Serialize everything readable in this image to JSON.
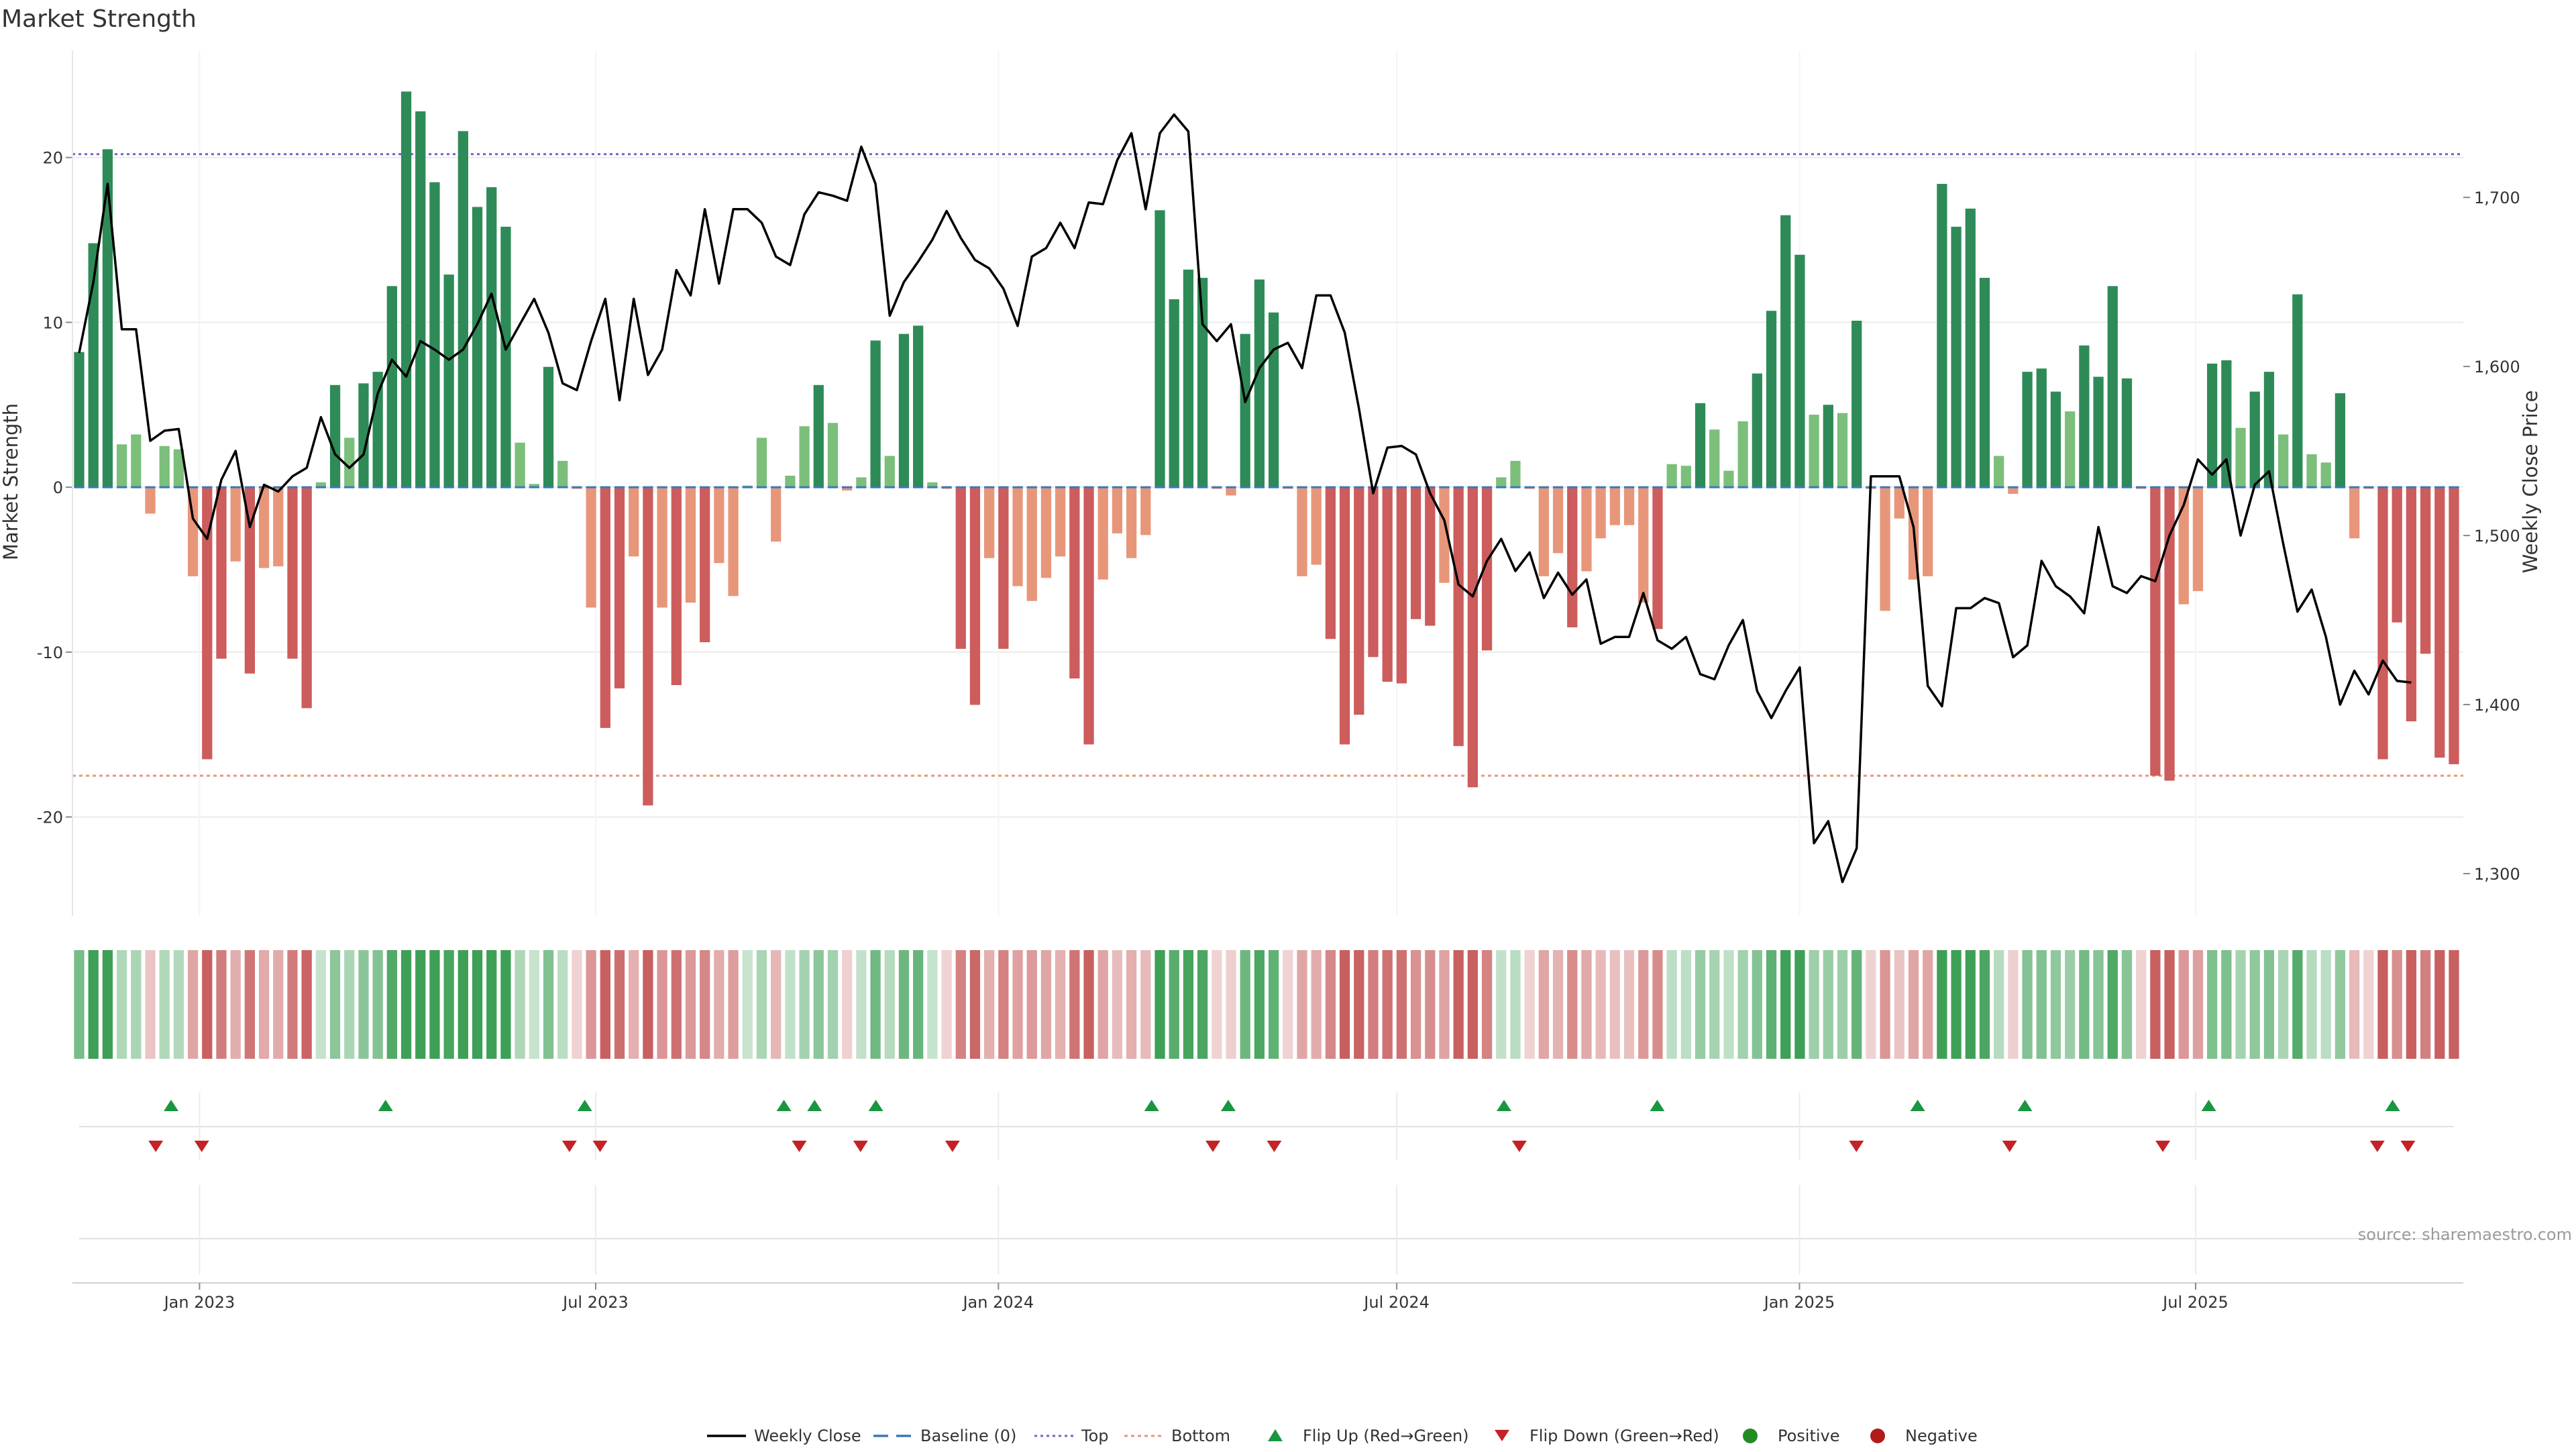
{
  "chart_data": {
    "type": "bar+line",
    "title": "Market Strength",
    "ylabel_left": "Market Strength",
    "ylabel_right": "Weekly Close Price",
    "ylim_left": [
      -26.0,
      26.5
    ],
    "ylim_right": [
      1275,
      1787
    ],
    "yticks_left": [
      20,
      10,
      0,
      -10,
      -20
    ],
    "yticks_right": [
      1700,
      1600,
      1500,
      1400,
      1300
    ],
    "yticks_right_labels": [
      "1,700",
      "1,600",
      "1,500",
      "1,400",
      "1,300"
    ],
    "top_line": 20.2,
    "bottom_line": -17.5,
    "baseline": 0,
    "x_start": "2022-11-07",
    "x_end": "2025-10-27",
    "xticks": [
      {
        "date": "2023-01-01",
        "label": "Jan 2023"
      },
      {
        "date": "2023-07-01",
        "label": "Jul 2023"
      },
      {
        "date": "2024-01-01",
        "label": "Jan 2024"
      },
      {
        "date": "2024-07-01",
        "label": "Jul 2024"
      },
      {
        "date": "2025-01-01",
        "label": "Jan 2025"
      },
      {
        "date": "2025-07-01",
        "label": "Jul 2025"
      }
    ],
    "strength_values": [
      8.2,
      14.8,
      20.5,
      2.6,
      3.2,
      -1.6,
      2.5,
      2.3,
      -5.4,
      -16.5,
      -10.4,
      -4.5,
      -11.3,
      -4.9,
      -4.8,
      -10.4,
      -13.4,
      0.3,
      6.2,
      3.0,
      6.3,
      7.0,
      12.2,
      24.0,
      22.8,
      18.5,
      12.9,
      21.6,
      17.0,
      18.2,
      15.8,
      2.7,
      0.2,
      7.3,
      1.6,
      -0.1,
      -7.3,
      -14.6,
      -12.2,
      -4.2,
      -19.3,
      -7.3,
      -12.0,
      -7.0,
      -9.4,
      -4.6,
      -6.6,
      0.1,
      3.0,
      -3.3,
      0.7,
      3.7,
      6.2,
      3.9,
      -0.2,
      0.6,
      8.9,
      1.9,
      9.3,
      9.8,
      0.3,
      -0.1,
      -9.8,
      -13.2,
      -4.3,
      -9.8,
      -6.0,
      -6.9,
      -5.5,
      -4.2,
      -11.6,
      -15.6,
      -5.6,
      -2.8,
      -4.3,
      -2.9,
      16.8,
      11.4,
      13.2,
      12.7,
      -0.1,
      -0.5,
      9.3,
      12.6,
      10.6,
      -0.1,
      -5.4,
      -4.7,
      -9.2,
      -15.6,
      -13.8,
      -10.3,
      -11.8,
      -11.9,
      -8.0,
      -8.4,
      -5.8,
      -15.7,
      -18.2,
      -9.9,
      0.6,
      1.6,
      -0.1,
      -5.4,
      -4.0,
      -8.5,
      -5.1,
      -3.1,
      -2.3,
      -2.3,
      -7.0,
      -8.6,
      1.4,
      1.3,
      5.1,
      3.5,
      1.0,
      4.0,
      6.9,
      10.7,
      16.5,
      14.1,
      4.4,
      5.0,
      4.5,
      10.1,
      -0.1,
      -7.5,
      -1.9,
      -5.6,
      -5.4,
      18.4,
      15.8,
      16.9,
      12.7,
      1.9,
      -0.4,
      7.0,
      7.2,
      5.8,
      4.6,
      8.6,
      6.7,
      12.2,
      6.6,
      -0.1,
      -17.5,
      -17.8,
      -7.1,
      -6.3,
      7.5,
      7.7,
      3.6,
      5.8,
      7.0,
      3.2,
      11.7,
      2.0,
      1.5,
      5.7,
      -3.1,
      -0.1,
      -16.5,
      -8.2,
      -14.2,
      -10.1,
      -16.4,
      -16.8
    ],
    "weekly_close": [
      1608,
      1650,
      1708,
      1622,
      1622,
      1556,
      1562,
      1563,
      1510,
      1498,
      1533,
      1550,
      1505,
      1530,
      1526,
      1535,
      1540,
      1570,
      1548,
      1540,
      1548,
      1584,
      1604,
      1594,
      1615,
      1610,
      1604,
      1610,
      1625,
      1643,
      1610,
      1625,
      1640,
      1620,
      1590,
      1586,
      1615,
      1640,
      1580,
      1640,
      1595,
      1610,
      1657,
      1642,
      1693,
      1649,
      1693,
      1693,
      1685,
      1665,
      1660,
      1690,
      1703,
      1701,
      1698,
      1730,
      1708,
      1630,
      1650,
      1662,
      1675,
      1692,
      1676,
      1663,
      1658,
      1646,
      1624,
      1665,
      1670,
      1685,
      1670,
      1697,
      1696,
      1722,
      1738,
      1693,
      1738,
      1749,
      1739,
      1625,
      1615,
      1625,
      1579,
      1599,
      1610,
      1614,
      1599,
      1642,
      1642,
      1620,
      1575,
      1525,
      1552,
      1553,
      1548,
      1525,
      1509,
      1471,
      1464,
      1485,
      1498,
      1479,
      1490,
      1463,
      1478,
      1465,
      1474,
      1436,
      1440,
      1440,
      1466,
      1438,
      1433,
      1440,
      1418,
      1415,
      1435,
      1450,
      1408,
      1392,
      1408,
      1422,
      1318,
      1331,
      1295,
      1315,
      1535,
      1535,
      1535,
      1505,
      1411,
      1399,
      1457,
      1457,
      1463,
      1460,
      1428,
      1435,
      1485,
      1470,
      1464,
      1454,
      1505,
      1470,
      1466,
      1476,
      1473,
      1500,
      1518,
      1545,
      1536,
      1545,
      1500,
      1530,
      1538,
      1495,
      1455,
      1468,
      1440,
      1400,
      1420,
      1406,
      1426,
      1414,
      1413
    ],
    "flip_up_dates": [
      "2022-12-19",
      "2023-03-27",
      "2023-06-26",
      "2023-09-25",
      "2023-10-09",
      "2023-11-06",
      "2024-03-11",
      "2024-04-15",
      "2024-08-19",
      "2024-10-28",
      "2025-02-24",
      "2025-04-14",
      "2025-07-07",
      "2025-09-29"
    ],
    "flip_down_dates": [
      "2022-12-12",
      "2023-01-02",
      "2023-06-19",
      "2023-07-03",
      "2023-10-02",
      "2023-10-30",
      "2023-12-11",
      "2024-04-08",
      "2024-05-06",
      "2024-08-26",
      "2025-01-27",
      "2025-04-07",
      "2025-06-16",
      "2025-09-22",
      "2025-10-06"
    ],
    "colors": {
      "strong_pos": "#2e8b57",
      "weak_pos": "#7bbf7b",
      "weak_neg": "#e8967a",
      "strong_neg": "#cd5c5c",
      "weekly_close": "#000000",
      "baseline": "#3a78b8",
      "top": "#7a5cc8",
      "bottom": "#e8967a",
      "flip_up": "#1a9641",
      "flip_down": "#c42226",
      "positive": "#238b23",
      "negative": "#b31b1b"
    },
    "legend": [
      {
        "label": "Weekly Close",
        "icon": "solid-line"
      },
      {
        "label": "Baseline (0)",
        "icon": "dashed-line"
      },
      {
        "label": "Top",
        "icon": "dotted-line"
      },
      {
        "label": "Bottom",
        "icon": "dotted-line"
      },
      {
        "label": "Flip Up (Red→Green)",
        "icon": "triangle-up"
      },
      {
        "label": "Flip Down (Green→Red)",
        "icon": "triangle-down"
      },
      {
        "label": "Positive",
        "icon": "circle"
      },
      {
        "label": "Negative",
        "icon": "circle"
      }
    ],
    "source": "source: sharemaestro.com"
  }
}
